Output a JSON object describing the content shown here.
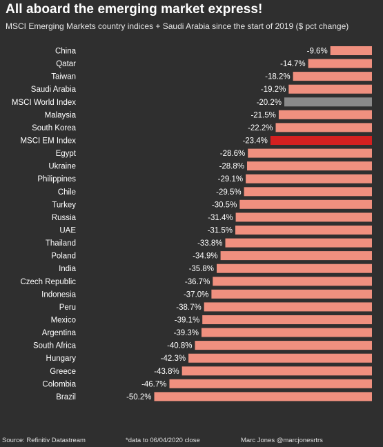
{
  "title": "All aboard the emerging market express!",
  "subtitle": "MSCI Emerging Markets country indices + Saudi Arabia since the start of 2019 ($ pct change)",
  "footer": {
    "source": "Source: Refinitiv Datastream",
    "note": "*data to 06/04/2020 close",
    "author": "Marc Jones @marcjonesrtrs"
  },
  "colors": {
    "background": "#2f2f2f",
    "bar_default": "#f0907f",
    "bar_world": "#8a8a8a",
    "bar_em": "#d42020"
  },
  "chart_data": {
    "type": "bar",
    "orientation": "horizontal",
    "categories": [
      "China",
      "Qatar",
      "Taiwan",
      "Saudi Arabia",
      "MSCI World Index",
      "Malaysia",
      "South Korea",
      "MSCI EM Index",
      "Egypt",
      "Ukraine",
      "Philippines",
      "Chile",
      "Turkey",
      "Russia",
      "UAE",
      "Thailand",
      "Poland",
      "India",
      "Czech Republic",
      "Indonesia",
      "Peru",
      "Mexico",
      "Argentina",
      "South Africa",
      "Hungary",
      "Greece",
      "Colombia",
      "Brazil"
    ],
    "values": [
      -9.6,
      -14.7,
      -18.2,
      -19.2,
      -20.2,
      -21.5,
      -22.2,
      -23.4,
      -28.6,
      -28.8,
      -29.1,
      -29.5,
      -30.5,
      -31.4,
      -31.5,
      -33.8,
      -34.9,
      -35.8,
      -36.7,
      -37.0,
      -38.7,
      -39.1,
      -39.3,
      -40.8,
      -42.3,
      -43.8,
      -46.7,
      -50.2
    ],
    "value_labels": [
      "-9.6%",
      "-14.7%",
      "-18.2%",
      "-19.2%",
      "-20.2%",
      "-21.5%",
      "-22.2%",
      "-23.4%",
      "-28.6%",
      "-28.8%",
      "-29.1%",
      "-29.5%",
      "-30.5%",
      "-31.4%",
      "-31.5%",
      "-33.8%",
      "-34.9%",
      "-35.8%",
      "-36.7%",
      "-37.0%",
      "-38.7%",
      "-39.1%",
      "-39.3%",
      "-40.8%",
      "-42.3%",
      "-43.8%",
      "-46.7%",
      "-50.2%"
    ],
    "highlight": {
      "MSCI World Index": "bar_world",
      "MSCI EM Index": "bar_em"
    },
    "xlim": [
      -52.5,
      0
    ],
    "grid": false,
    "legend": "none"
  }
}
